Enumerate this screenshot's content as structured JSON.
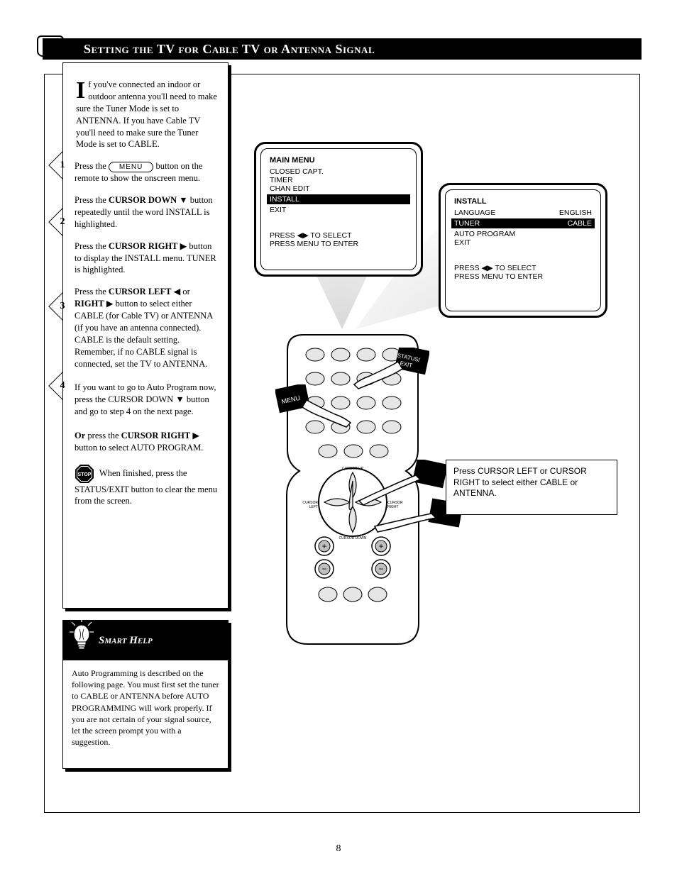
{
  "title": "Setting the TV for Cable TV or Antenna Signal",
  "intro": {
    "dropcap": "I",
    "text": "f you've connected an indoor or outdoor antenna you'll need to make sure the Tuner Mode is set to ANTENNA. If you have Cable TV you'll need to make sure the Tuner Mode is set to CABLE."
  },
  "steps": [
    {
      "num": "1",
      "pre": "Press the ",
      "pill": "MENU",
      "post": " button on the remote to show the onscreen menu."
    },
    {
      "num": "2",
      "html": "Press the <span class='bold'>CURSOR DOWN</span> <span class='arrow'>▼</span> button repeatedly until the word INSTALL is highlighted."
    },
    {
      "num": "3",
      "html": "Press the <span class='bold'>CURSOR RIGHT</span> <span class='arrow'>▶</span> button to display the INSTALL menu. TUNER is highlighted."
    },
    {
      "num": "4",
      "html": "Press the <span class='bold'>CURSOR LEFT</span> <span class='arrow'>◀</span> or <span class='bold'>RIGHT</span> <span class='arrow'>▶</span> button to select either CABLE (for Cable TV) or ANTENNA (if you have an antenna connected). CABLE is the default setting. Remember, if no CABLE signal is connected, set the TV to ANTENNA.<br><br>If you want to go to Auto Program now, press the CURSOR DOWN <span class='arrow'>▼</span> button and go to step 4 on the next page.<br><br><span class='bold'>Or</span> press the <span class='bold'>CURSOR RIGHT</span> <span class='arrow'>▶</span> button to select AUTO PROGRAM."
    }
  ],
  "stop_note": "When finished, press the STATUS/EXIT button to clear the menu from the screen.",
  "help_title": "Smart Help",
  "help_body": "Auto Programming is described on the following page. You must first set the tuner to CABLE or ANTENNA before AUTO PROGRAMMING will work properly. If you are not certain of your signal source, let the screen prompt you with a suggestion.",
  "tv1": {
    "title": "MAIN MENU",
    "items": [
      "CLOSED CAPT.",
      "TIMER",
      "CHAN EDIT"
    ],
    "highlight": "INSTALL",
    "tail": [
      "EXIT",
      "",
      "PRESS ◀▶ TO SELECT",
      "PRESS MENU TO ENTER"
    ]
  },
  "tv2": {
    "title": "INSTALL",
    "rows": [
      [
        "LANGUAGE",
        "ENGLISH"
      ]
    ],
    "highlight_row": [
      "TUNER",
      "CABLE"
    ],
    "rows_after": [
      [
        "AUTO PROGRAM",
        ""
      ],
      [
        "EXIT",
        ""
      ]
    ],
    "tail": [
      "PRESS ◀▶ TO SELECT",
      "PRESS MENU TO ENTER"
    ]
  },
  "remote_labels": {
    "row1": "STATUS/EXIT",
    "row2": "MENU",
    "cursor": {
      "up": "CURSOR UP",
      "down": "CURSOR DOWN",
      "left": "CURSOR LEFT",
      "right": "CURSOR RIGHT"
    }
  },
  "callout": "Press CURSOR LEFT or CURSOR RIGHT to select either CABLE or ANTENNA.",
  "page_number": "8",
  "colors": {
    "black": "#000000",
    "white": "#ffffff",
    "grey_light": "#e6e6e6",
    "grey_mid": "#bfbfbf"
  }
}
